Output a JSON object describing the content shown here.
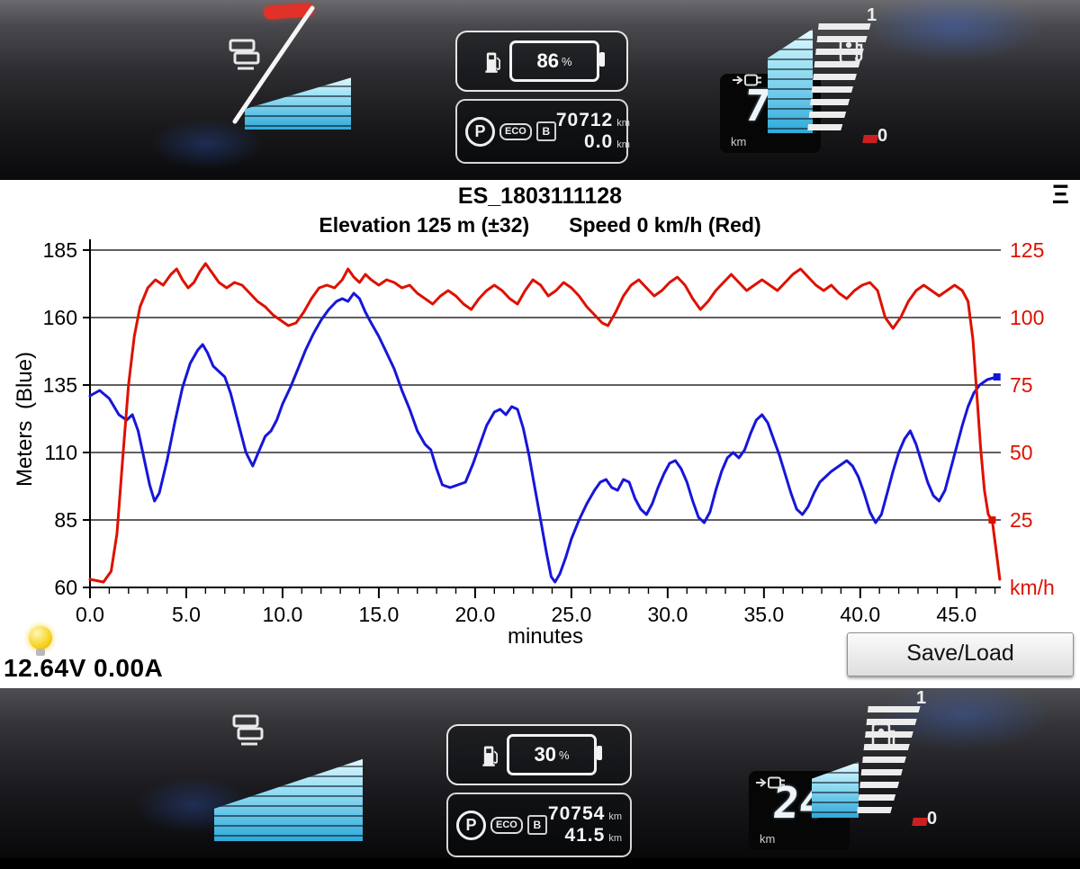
{
  "app": {
    "title": "ES_1803111128",
    "menu_icon": "Ξ",
    "subtitle_left": "Elevation 125 m (±32)",
    "subtitle_right": "Speed 0 km/h (Red)",
    "voltage_current": "12.64V 0.00A",
    "save_load_button": "Save/Load"
  },
  "chart_data": {
    "type": "line",
    "title": "ES_1803111128",
    "xlabel": "minutes",
    "ylabel_left": "Meters (Blue)",
    "right_unit_label": "km/h",
    "x_range": [
      0,
      47.3
    ],
    "x_major_ticks": [
      0,
      5,
      10,
      15,
      20,
      25,
      30,
      35,
      40,
      45
    ],
    "x_tick_labels": [
      "0.0",
      "5.0",
      "10.0",
      "15.0",
      "20.0",
      "25.0",
      "30.0",
      "35.0",
      "40.0",
      "45.0"
    ],
    "x_minor_step": 1,
    "left_axis": {
      "min": 60,
      "max": 185,
      "ticks": [
        185,
        160,
        135,
        110,
        85,
        60
      ],
      "color": "#000000"
    },
    "right_axis": {
      "min": 0,
      "max": 125,
      "ticks": [
        125,
        100,
        75,
        50,
        25
      ],
      "color": "#dd1100"
    },
    "grid": {
      "horizontal": true,
      "vertical": false
    },
    "legend": "none",
    "series": [
      {
        "name": "elevation",
        "label": "Elevation (Blue, m)",
        "axis": "left",
        "color": "#1616d9",
        "width": 3,
        "marker": [
          47.1,
          138
        ],
        "points": [
          [
            0,
            131
          ],
          [
            0.5,
            133
          ],
          [
            1,
            130
          ],
          [
            1.5,
            124
          ],
          [
            1.9,
            122
          ],
          [
            2.2,
            124
          ],
          [
            2.5,
            118
          ],
          [
            2.8,
            108
          ],
          [
            3.1,
            98
          ],
          [
            3.35,
            92
          ],
          [
            3.6,
            95
          ],
          [
            4,
            107
          ],
          [
            4.4,
            121
          ],
          [
            4.8,
            134
          ],
          [
            5.2,
            143
          ],
          [
            5.6,
            148
          ],
          [
            5.85,
            150
          ],
          [
            6.1,
            147
          ],
          [
            6.4,
            142
          ],
          [
            6.7,
            140
          ],
          [
            7,
            138
          ],
          [
            7.3,
            132
          ],
          [
            7.7,
            121
          ],
          [
            8.1,
            110
          ],
          [
            8.45,
            105
          ],
          [
            8.8,
            111
          ],
          [
            9.1,
            116
          ],
          [
            9.4,
            118
          ],
          [
            9.7,
            122
          ],
          [
            10,
            128
          ],
          [
            10.4,
            134
          ],
          [
            10.8,
            141
          ],
          [
            11.2,
            148
          ],
          [
            11.6,
            154
          ],
          [
            12,
            159
          ],
          [
            12.4,
            163
          ],
          [
            12.8,
            166
          ],
          [
            13.1,
            167
          ],
          [
            13.4,
            166
          ],
          [
            13.7,
            169
          ],
          [
            14,
            167
          ],
          [
            14.3,
            162
          ],
          [
            14.6,
            158
          ],
          [
            15,
            153
          ],
          [
            15.4,
            147
          ],
          [
            15.8,
            141
          ],
          [
            16.2,
            133
          ],
          [
            16.6,
            126
          ],
          [
            17,
            118
          ],
          [
            17.4,
            113
          ],
          [
            17.7,
            111
          ],
          [
            18,
            104
          ],
          [
            18.3,
            98
          ],
          [
            18.7,
            97
          ],
          [
            19.1,
            98
          ],
          [
            19.5,
            99
          ],
          [
            19.9,
            106
          ],
          [
            20.3,
            114
          ],
          [
            20.6,
            120
          ],
          [
            21,
            125
          ],
          [
            21.3,
            126
          ],
          [
            21.6,
            124
          ],
          [
            21.9,
            127
          ],
          [
            22.2,
            126
          ],
          [
            22.5,
            119
          ],
          [
            22.8,
            109
          ],
          [
            23.1,
            97
          ],
          [
            23.4,
            85
          ],
          [
            23.7,
            73
          ],
          [
            23.95,
            64
          ],
          [
            24.15,
            62
          ],
          [
            24.4,
            65
          ],
          [
            24.7,
            71
          ],
          [
            25,
            78
          ],
          [
            25.4,
            85
          ],
          [
            25.8,
            91
          ],
          [
            26.2,
            96
          ],
          [
            26.5,
            99
          ],
          [
            26.8,
            100
          ],
          [
            27.1,
            97
          ],
          [
            27.4,
            96
          ],
          [
            27.7,
            100
          ],
          [
            28,
            99
          ],
          [
            28.3,
            93
          ],
          [
            28.6,
            89
          ],
          [
            28.9,
            87
          ],
          [
            29.2,
            91
          ],
          [
            29.5,
            97
          ],
          [
            29.8,
            102
          ],
          [
            30.1,
            106
          ],
          [
            30.4,
            107
          ],
          [
            30.7,
            104
          ],
          [
            31,
            99
          ],
          [
            31.3,
            92
          ],
          [
            31.6,
            86
          ],
          [
            31.9,
            84
          ],
          [
            32.2,
            88
          ],
          [
            32.5,
            96
          ],
          [
            32.8,
            103
          ],
          [
            33.1,
            108
          ],
          [
            33.4,
            110
          ],
          [
            33.7,
            108
          ],
          [
            34,
            111
          ],
          [
            34.3,
            117
          ],
          [
            34.6,
            122
          ],
          [
            34.9,
            124
          ],
          [
            35.2,
            121
          ],
          [
            35.5,
            115
          ],
          [
            35.8,
            109
          ],
          [
            36.1,
            102
          ],
          [
            36.4,
            95
          ],
          [
            36.7,
            89
          ],
          [
            37,
            87
          ],
          [
            37.3,
            90
          ],
          [
            37.6,
            95
          ],
          [
            37.9,
            99
          ],
          [
            38.2,
            101
          ],
          [
            38.5,
            103
          ],
          [
            38.9,
            105
          ],
          [
            39.3,
            107
          ],
          [
            39.6,
            105
          ],
          [
            39.9,
            101
          ],
          [
            40.2,
            95
          ],
          [
            40.5,
            88
          ],
          [
            40.8,
            84
          ],
          [
            41.1,
            87
          ],
          [
            41.4,
            95
          ],
          [
            41.7,
            103
          ],
          [
            42,
            110
          ],
          [
            42.3,
            115
          ],
          [
            42.6,
            118
          ],
          [
            42.9,
            113
          ],
          [
            43.2,
            106
          ],
          [
            43.5,
            99
          ],
          [
            43.8,
            94
          ],
          [
            44.1,
            92
          ],
          [
            44.4,
            96
          ],
          [
            44.7,
            104
          ],
          [
            45,
            112
          ],
          [
            45.3,
            120
          ],
          [
            45.6,
            127
          ],
          [
            45.9,
            132
          ],
          [
            46.2,
            135
          ],
          [
            46.6,
            137
          ],
          [
            47.1,
            138
          ]
        ]
      },
      {
        "name": "speed",
        "label": "Speed (Red, km/h)",
        "axis": "right",
        "color": "#dd1100",
        "width": 3,
        "marker": [
          46.85,
          25
        ],
        "points": [
          [
            0,
            3
          ],
          [
            0.7,
            2
          ],
          [
            1.1,
            6
          ],
          [
            1.4,
            20
          ],
          [
            1.7,
            48
          ],
          [
            2,
            75
          ],
          [
            2.3,
            93
          ],
          [
            2.6,
            104
          ],
          [
            3,
            111
          ],
          [
            3.4,
            114
          ],
          [
            3.8,
            112
          ],
          [
            4.2,
            116
          ],
          [
            4.5,
            118
          ],
          [
            4.8,
            114
          ],
          [
            5.1,
            111
          ],
          [
            5.4,
            113
          ],
          [
            5.7,
            117
          ],
          [
            6,
            120
          ],
          [
            6.3,
            117
          ],
          [
            6.7,
            113
          ],
          [
            7.1,
            111
          ],
          [
            7.5,
            113
          ],
          [
            7.9,
            112
          ],
          [
            8.3,
            109
          ],
          [
            8.7,
            106
          ],
          [
            9.1,
            104
          ],
          [
            9.5,
            101
          ],
          [
            9.9,
            99
          ],
          [
            10.3,
            97
          ],
          [
            10.7,
            98
          ],
          [
            11.1,
            102
          ],
          [
            11.5,
            107
          ],
          [
            11.9,
            111
          ],
          [
            12.3,
            112
          ],
          [
            12.7,
            111
          ],
          [
            13.1,
            114
          ],
          [
            13.4,
            118
          ],
          [
            13.7,
            115
          ],
          [
            14,
            113
          ],
          [
            14.3,
            116
          ],
          [
            14.6,
            114
          ],
          [
            15,
            112
          ],
          [
            15.4,
            114
          ],
          [
            15.8,
            113
          ],
          [
            16.2,
            111
          ],
          [
            16.6,
            112
          ],
          [
            17,
            109
          ],
          [
            17.4,
            107
          ],
          [
            17.8,
            105
          ],
          [
            18.2,
            108
          ],
          [
            18.6,
            110
          ],
          [
            19,
            108
          ],
          [
            19.4,
            105
          ],
          [
            19.8,
            103
          ],
          [
            20.2,
            107
          ],
          [
            20.6,
            110
          ],
          [
            21,
            112
          ],
          [
            21.4,
            110
          ],
          [
            21.8,
            107
          ],
          [
            22.2,
            105
          ],
          [
            22.6,
            110
          ],
          [
            23,
            114
          ],
          [
            23.4,
            112
          ],
          [
            23.8,
            108
          ],
          [
            24.2,
            110
          ],
          [
            24.6,
            113
          ],
          [
            25,
            111
          ],
          [
            25.4,
            108
          ],
          [
            25.8,
            104
          ],
          [
            26.2,
            101
          ],
          [
            26.6,
            98
          ],
          [
            26.9,
            97
          ],
          [
            27.3,
            102
          ],
          [
            27.7,
            108
          ],
          [
            28.1,
            112
          ],
          [
            28.5,
            114
          ],
          [
            28.9,
            111
          ],
          [
            29.3,
            108
          ],
          [
            29.7,
            110
          ],
          [
            30.1,
            113
          ],
          [
            30.5,
            115
          ],
          [
            30.9,
            112
          ],
          [
            31.3,
            107
          ],
          [
            31.7,
            103
          ],
          [
            32.1,
            106
          ],
          [
            32.5,
            110
          ],
          [
            32.9,
            113
          ],
          [
            33.3,
            116
          ],
          [
            33.7,
            113
          ],
          [
            34.1,
            110
          ],
          [
            34.5,
            112
          ],
          [
            34.9,
            114
          ],
          [
            35.3,
            112
          ],
          [
            35.7,
            110
          ],
          [
            36.1,
            113
          ],
          [
            36.5,
            116
          ],
          [
            36.9,
            118
          ],
          [
            37.3,
            115
          ],
          [
            37.7,
            112
          ],
          [
            38.1,
            110
          ],
          [
            38.5,
            112
          ],
          [
            38.9,
            109
          ],
          [
            39.3,
            107
          ],
          [
            39.7,
            110
          ],
          [
            40.1,
            112
          ],
          [
            40.5,
            113
          ],
          [
            40.9,
            110
          ],
          [
            41.3,
            100
          ],
          [
            41.7,
            96
          ],
          [
            42.1,
            100
          ],
          [
            42.5,
            106
          ],
          [
            42.9,
            110
          ],
          [
            43.3,
            112
          ],
          [
            43.7,
            110
          ],
          [
            44.1,
            108
          ],
          [
            44.5,
            110
          ],
          [
            44.9,
            112
          ],
          [
            45.3,
            110
          ],
          [
            45.6,
            106
          ],
          [
            45.85,
            92
          ],
          [
            46.05,
            72
          ],
          [
            46.25,
            52
          ],
          [
            46.45,
            36
          ],
          [
            46.65,
            27
          ],
          [
            46.85,
            25
          ],
          [
            47.05,
            14
          ],
          [
            47.25,
            3
          ]
        ]
      }
    ]
  },
  "dash_top": {
    "soc_percent": "86",
    "percent_sign": "%",
    "gear": "P",
    "eco": "ECO",
    "brake_mode": "B",
    "odometer": "70712",
    "odometer_unit": "km",
    "trip": "0.0",
    "trip_unit": "km",
    "range": "73",
    "range_unit": "km",
    "gauge_max": "1",
    "gauge_min": "0"
  },
  "dash_bottom": {
    "soc_percent": "30",
    "percent_sign": "%",
    "gear": "P",
    "eco": "ECO",
    "brake_mode": "B",
    "odometer": "70754",
    "odometer_unit": "km",
    "trip": "41.5",
    "trip_unit": "km",
    "range": "24",
    "range_unit": "km",
    "gauge_max": "1",
    "gauge_min": "0"
  }
}
